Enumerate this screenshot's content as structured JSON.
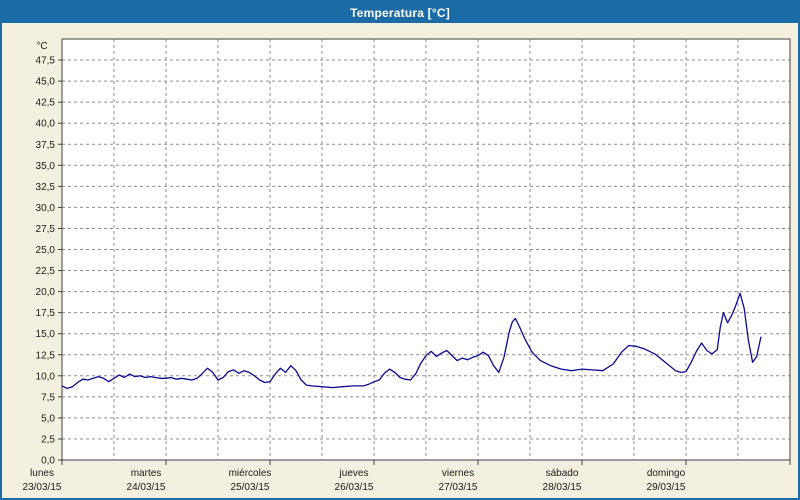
{
  "title": "Temperatura [°C]",
  "colors": {
    "title_bar": "#1b6ba6",
    "window_background": "#f3f0df",
    "plot_background": "#ffffff",
    "grid": "#8f8f8f",
    "plot_border": "#404040",
    "line": "#0b0b92",
    "axis_text": "#1a1a1a"
  },
  "chart_data": {
    "type": "line",
    "title": "Temperatura [°C]",
    "ylabel": "°C",
    "xlabel": "",
    "legend": [],
    "grid": "dashed",
    "ylim": [
      0,
      50
    ],
    "x_range_days": [
      0,
      7
    ],
    "ytick_values": [
      0,
      2.5,
      5,
      7.5,
      10,
      12.5,
      15,
      17.5,
      20,
      22.5,
      25,
      27.5,
      30,
      32.5,
      35,
      37.5,
      40,
      42.5,
      45,
      47.5
    ],
    "ytick_labels": [
      "0,0",
      "2,5",
      "5,0",
      "7,5",
      "10,0",
      "12,5",
      "15,0",
      "17,5",
      "20,0",
      "22,5",
      "25,0",
      "27,5",
      "30,0",
      "32,5",
      "35,0",
      "37,5",
      "40,0",
      "42,5",
      "45,0",
      "47,5"
    ],
    "x_days": [
      {
        "name": "lunes",
        "date": "23/03/15"
      },
      {
        "name": "martes",
        "date": "24/03/15"
      },
      {
        "name": "miércoles",
        "date": "25/03/15"
      },
      {
        "name": "jueves",
        "date": "26/03/15"
      },
      {
        "name": "viernes",
        "date": "27/03/15"
      },
      {
        "name": "sábado",
        "date": "28/03/15"
      },
      {
        "name": "domingo",
        "date": "29/03/15"
      }
    ],
    "series": [
      {
        "name": "Temperatura",
        "unit": "°C",
        "points": [
          [
            0.0,
            8.8
          ],
          [
            0.05,
            8.5
          ],
          [
            0.1,
            8.7
          ],
          [
            0.15,
            9.2
          ],
          [
            0.2,
            9.6
          ],
          [
            0.25,
            9.5
          ],
          [
            0.3,
            9.7
          ],
          [
            0.35,
            9.9
          ],
          [
            0.4,
            9.7
          ],
          [
            0.45,
            9.3
          ],
          [
            0.5,
            9.7
          ],
          [
            0.55,
            10.1
          ],
          [
            0.6,
            9.8
          ],
          [
            0.65,
            10.2
          ],
          [
            0.7,
            9.9
          ],
          [
            0.75,
            10.0
          ],
          [
            0.8,
            9.8
          ],
          [
            0.85,
            9.9
          ],
          [
            0.9,
            9.8
          ],
          [
            0.95,
            9.7
          ],
          [
            1.0,
            9.7
          ],
          [
            1.05,
            9.8
          ],
          [
            1.1,
            9.6
          ],
          [
            1.15,
            9.7
          ],
          [
            1.2,
            9.6
          ],
          [
            1.25,
            9.5
          ],
          [
            1.3,
            9.7
          ],
          [
            1.35,
            10.3
          ],
          [
            1.4,
            10.9
          ],
          [
            1.45,
            10.4
          ],
          [
            1.5,
            9.5
          ],
          [
            1.55,
            9.8
          ],
          [
            1.6,
            10.5
          ],
          [
            1.65,
            10.7
          ],
          [
            1.7,
            10.3
          ],
          [
            1.75,
            10.6
          ],
          [
            1.8,
            10.4
          ],
          [
            1.85,
            10.0
          ],
          [
            1.9,
            9.5
          ],
          [
            1.95,
            9.2
          ],
          [
            2.0,
            9.3
          ],
          [
            2.05,
            10.2
          ],
          [
            2.1,
            10.9
          ],
          [
            2.15,
            10.4
          ],
          [
            2.2,
            11.2
          ],
          [
            2.25,
            10.6
          ],
          [
            2.3,
            9.5
          ],
          [
            2.35,
            8.9
          ],
          [
            2.4,
            8.8
          ],
          [
            2.5,
            8.7
          ],
          [
            2.6,
            8.6
          ],
          [
            2.7,
            8.7
          ],
          [
            2.8,
            8.8
          ],
          [
            2.9,
            8.8
          ],
          [
            2.95,
            9.0
          ],
          [
            3.0,
            9.3
          ],
          [
            3.05,
            9.5
          ],
          [
            3.1,
            10.3
          ],
          [
            3.15,
            10.8
          ],
          [
            3.2,
            10.4
          ],
          [
            3.25,
            9.8
          ],
          [
            3.3,
            9.6
          ],
          [
            3.35,
            9.5
          ],
          [
            3.4,
            10.2
          ],
          [
            3.45,
            11.5
          ],
          [
            3.5,
            12.4
          ],
          [
            3.55,
            12.9
          ],
          [
            3.6,
            12.3
          ],
          [
            3.65,
            12.7
          ],
          [
            3.7,
            13.0
          ],
          [
            3.75,
            12.4
          ],
          [
            3.8,
            11.8
          ],
          [
            3.85,
            12.1
          ],
          [
            3.9,
            11.9
          ],
          [
            3.95,
            12.2
          ],
          [
            4.0,
            12.4
          ],
          [
            4.05,
            12.8
          ],
          [
            4.1,
            12.4
          ],
          [
            4.15,
            11.2
          ],
          [
            4.2,
            10.4
          ],
          [
            4.25,
            12.2
          ],
          [
            4.3,
            15.2
          ],
          [
            4.33,
            16.4
          ],
          [
            4.36,
            16.8
          ],
          [
            4.4,
            15.8
          ],
          [
            4.45,
            14.4
          ],
          [
            4.52,
            12.8
          ],
          [
            4.6,
            11.8
          ],
          [
            4.7,
            11.2
          ],
          [
            4.8,
            10.8
          ],
          [
            4.9,
            10.6
          ],
          [
            4.95,
            10.7
          ],
          [
            5.0,
            10.8
          ],
          [
            5.1,
            10.7
          ],
          [
            5.2,
            10.6
          ],
          [
            5.3,
            11.4
          ],
          [
            5.38,
            12.8
          ],
          [
            5.45,
            13.6
          ],
          [
            5.52,
            13.5
          ],
          [
            5.6,
            13.2
          ],
          [
            5.7,
            12.6
          ],
          [
            5.8,
            11.6
          ],
          [
            5.9,
            10.6
          ],
          [
            5.95,
            10.4
          ],
          [
            6.0,
            10.5
          ],
          [
            6.05,
            11.6
          ],
          [
            6.1,
            12.9
          ],
          [
            6.15,
            13.9
          ],
          [
            6.2,
            13.0
          ],
          [
            6.25,
            12.6
          ],
          [
            6.3,
            13.1
          ],
          [
            6.33,
            15.8
          ],
          [
            6.36,
            17.5
          ],
          [
            6.4,
            16.3
          ],
          [
            6.44,
            17.2
          ],
          [
            6.48,
            18.4
          ],
          [
            6.52,
            19.8
          ],
          [
            6.56,
            18.0
          ],
          [
            6.6,
            14.2
          ],
          [
            6.64,
            11.6
          ],
          [
            6.68,
            12.3
          ],
          [
            6.72,
            14.6
          ]
        ]
      }
    ]
  }
}
